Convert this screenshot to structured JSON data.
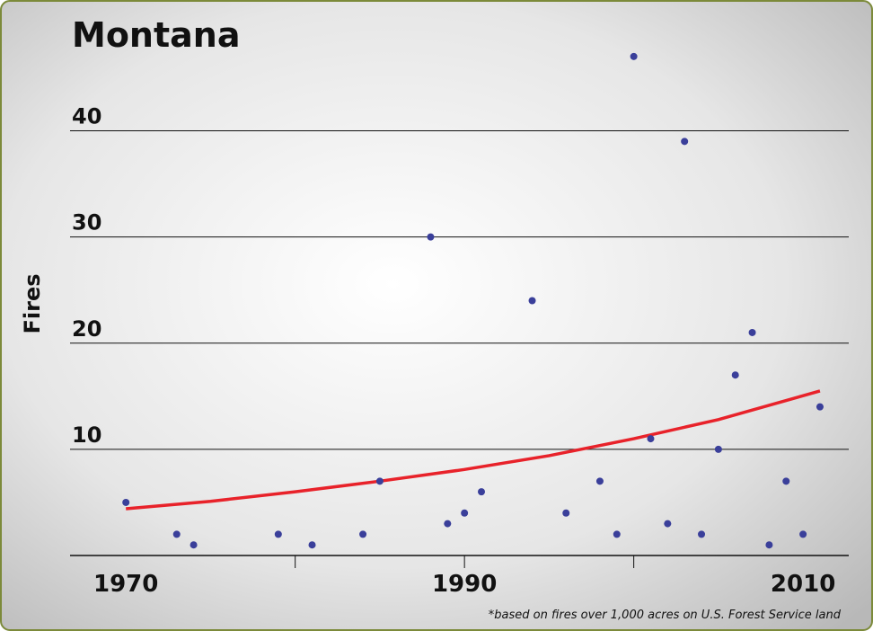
{
  "chart_data": {
    "type": "scatter",
    "title": "Montana",
    "y_label": "Fires",
    "footnote": "*based on fires over 1,000 acres on U.S. Forest Service land",
    "x": [
      1970,
      1973,
      1974,
      1979,
      1981,
      1984,
      1985,
      1988,
      1989,
      1990,
      1991,
      1994,
      1996,
      1998,
      1999,
      2000,
      2001,
      2002,
      2003,
      2004,
      2005,
      2006,
      2007,
      2008,
      2009,
      2010,
      2011
    ],
    "values": [
      5,
      2,
      1,
      2,
      1,
      2,
      7,
      30,
      3,
      4,
      6,
      24,
      4,
      7,
      2,
      47,
      11,
      3,
      39,
      2,
      10,
      17,
      21,
      1,
      7,
      2,
      14
    ],
    "color": "#3a3f9a",
    "trend": {
      "x": [
        1970,
        1975,
        1980,
        1985,
        1990,
        1995,
        2000,
        2005,
        2011
      ],
      "values": [
        4.4,
        5.1,
        6.0,
        7.0,
        8.1,
        9.4,
        11.0,
        12.8,
        15.5
      ],
      "color": "#e8222a"
    },
    "xlim": [
      1966.7,
      2012.7
    ],
    "ylim": [
      0,
      48
    ],
    "xticks": [
      1970,
      1990,
      2010
    ],
    "xtick_marks": [
      1980,
      1990,
      2000
    ],
    "yticks": [
      10,
      20,
      30,
      40
    ],
    "grid": true
  }
}
